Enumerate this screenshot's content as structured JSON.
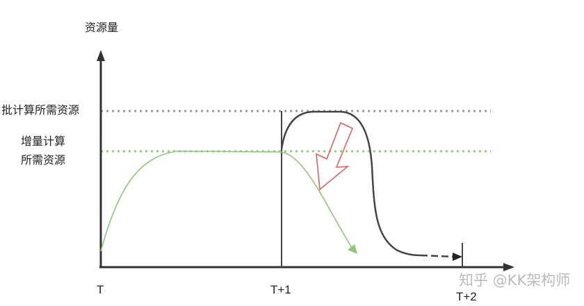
{
  "labels": {
    "y_axis": "资源量",
    "batch_level": "批计算所需资源",
    "incremental_level_line1": "增量计算",
    "incremental_level_line2": "所需资源"
  },
  "ticks": [
    "T",
    "T+1",
    "T+2"
  ],
  "watermark": "知乎 @KK架构师",
  "colors": {
    "axis": "#333333",
    "batch_curve": "#444444",
    "incremental_curve": "#8fc77a",
    "batch_dotted": "#999999",
    "incremental_dotted": "#8fcf7a",
    "arrow_outline": "#e06060"
  }
}
